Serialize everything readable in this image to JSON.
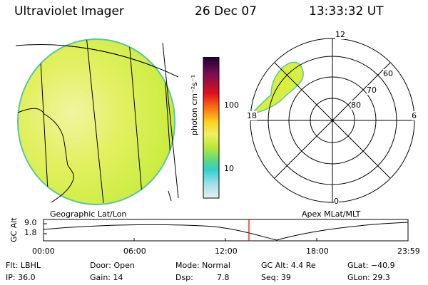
{
  "header": {
    "instrument": "Ultraviolet Imager",
    "date": "26 Dec 07",
    "time": "13:33:32 UT"
  },
  "colorbar": {
    "unit_label": "photon cm⁻²s⁻¹",
    "ticks": [
      "100",
      "10"
    ]
  },
  "polar_plot": {
    "mlt_labels": [
      "12",
      "18",
      "6",
      "0"
    ],
    "mlat_labels": [
      "60",
      "70",
      "80"
    ]
  },
  "projection_labels": {
    "left": "Geographic Lat/Lon",
    "right": "Apex MLat/MLT"
  },
  "altitude_plot": {
    "ylabel": "GC Alt",
    "yticks": [
      "9.0",
      "1.8"
    ],
    "xticks": [
      "00:00",
      "06:00",
      "12:00",
      "18:00",
      "23:59"
    ]
  },
  "info": {
    "flt": "Flt: LBHL",
    "door": "Door: Open",
    "mode": "Mode: Normal",
    "gc_alt": "GC Alt: 4.4 Re",
    "glat": "GLat: −40.9",
    "ip": "IP: 36.0",
    "gain": "Gain: 14",
    "dsp_label": "Dsp:",
    "dsp_value": "7.8",
    "seq": "Seq: 39",
    "glon": "GLon:  29.3"
  },
  "colors": {
    "disk_fill": "#d4ee3c",
    "aurora_fill": "#d8ef40"
  }
}
